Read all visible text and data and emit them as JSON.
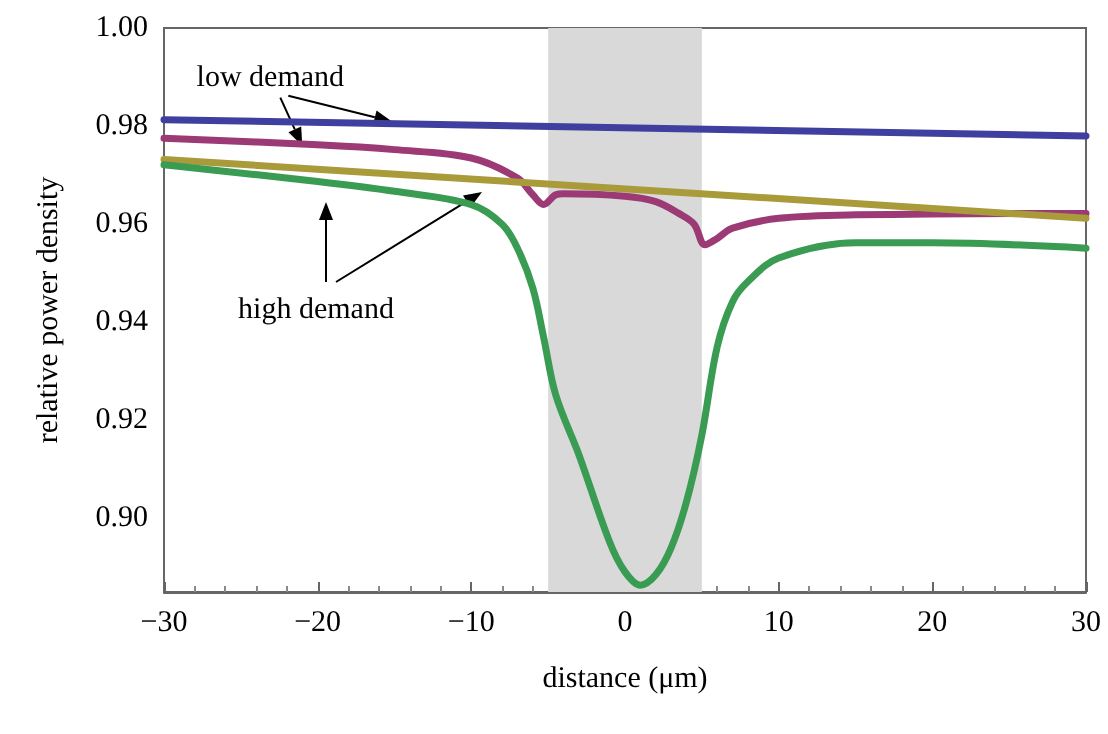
{
  "chart_data": {
    "type": "line",
    "xlabel": "distance (μm)",
    "ylabel": "relative power density",
    "annotations": [
      {
        "text": "low demand",
        "x": -21,
        "y": 0.976
      },
      "high demand"
    ],
    "xlim": [
      -30,
      30
    ],
    "xticks": [
      {
        "value": -30,
        "label": "−30"
      },
      {
        "value": -20,
        "label": "−20"
      },
      {
        "value": -10,
        "label": "−10"
      },
      0,
      10,
      20,
      30
    ],
    "ylim": [
      0.885,
      1.0
    ],
    "yticks": [
      {
        "value": 0.9,
        "label": "0.90"
      },
      0.92,
      0.94,
      0.96,
      0.98,
      {
        "value": 1.0,
        "label": "1.00"
      }
    ],
    "grid": false,
    "marker": "none",
    "line_style": "solid",
    "bands": [
      {
        "axis": "x",
        "from": -5,
        "to": 5,
        "color": "#d9d9d9"
      }
    ],
    "series": [
      {
        "color": "#3f3f9f",
        "x": [
          -30,
          30
        ],
        "values": [
          0.9813,
          0.978
        ]
      },
      {
        "color": "#9b3a74",
        "x": [
          -30,
          -20,
          -15,
          -10,
          -7,
          -6,
          -5.3,
          -4.5,
          -4,
          0,
          2,
          3.5,
          4.5,
          5.2,
          6,
          7,
          10,
          15,
          30
        ],
        "values": [
          0.9775,
          0.9762,
          0.9752,
          0.9735,
          0.9694,
          0.966,
          0.964,
          0.966,
          0.9662,
          0.9657,
          0.9646,
          0.9622,
          0.96,
          0.9558,
          0.9571,
          0.9592,
          0.9612,
          0.9619,
          0.9622
        ]
      },
      {
        "color": "#a99a3a",
        "x": [
          -30,
          30
        ],
        "values": [
          0.9732,
          0.9612
        ]
      },
      {
        "color": "#3a9b53",
        "x": [
          -30,
          -20,
          -15,
          -10,
          -8,
          -7,
          -6,
          -5.3,
          -4.5,
          -3,
          -1,
          0,
          1,
          2,
          3,
          4,
          5,
          6,
          7,
          8,
          10,
          15,
          20,
          30
        ],
        "values": [
          0.9721,
          0.9687,
          0.9667,
          0.964,
          0.96,
          0.9551,
          0.947,
          0.937,
          0.9251,
          0.913,
          0.8952,
          0.8891,
          0.8864,
          0.8885,
          0.894,
          0.9034,
          0.917,
          0.935,
          0.9442,
          0.9483,
          0.9531,
          0.9562,
          0.9562,
          0.9551
        ]
      }
    ]
  }
}
